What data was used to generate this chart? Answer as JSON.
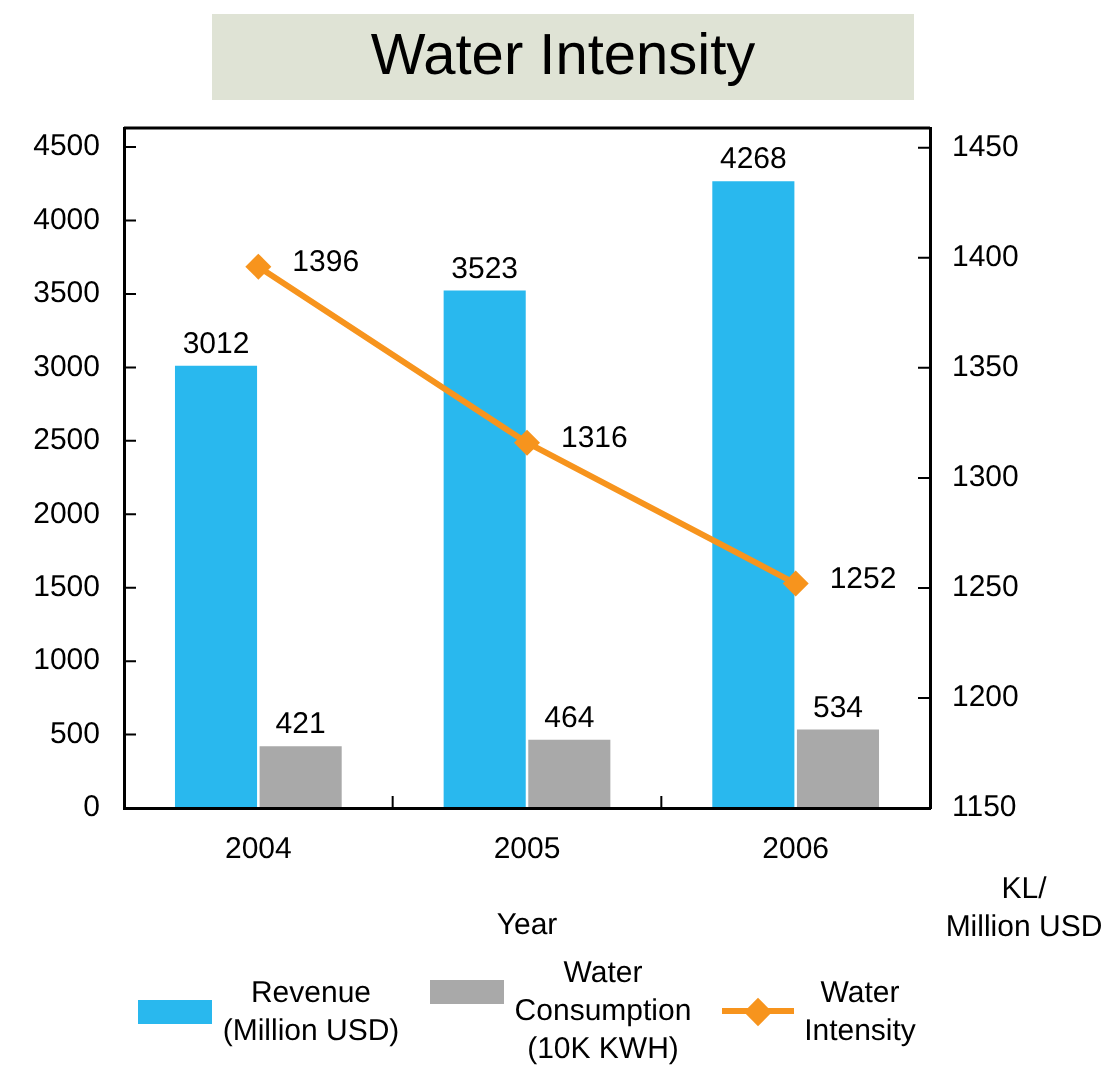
{
  "chart_data": {
    "type": "bar",
    "title": "Water Intensity",
    "categories": [
      "2004",
      "2005",
      "2006"
    ],
    "series": [
      {
        "name": "Revenue (Million USD)",
        "color": "#29b8ee",
        "values": [
          3012,
          3523,
          4268
        ]
      },
      {
        "name": "Water Consumption (10K KWH)",
        "color": "#a9a9a9",
        "values": [
          421,
          464,
          534
        ]
      },
      {
        "name": "Water Intensity",
        "type": "line",
        "axis": "y2",
        "color": "#f7941d",
        "values": [
          1396,
          1316,
          1252
        ]
      }
    ],
    "xlabel": "Year",
    "y2label": "KL/\nMillion USD",
    "ylim": [
      0,
      4630
    ],
    "yticks": [
      0,
      500,
      1000,
      1500,
      2000,
      2500,
      3000,
      3500,
      4000,
      4500
    ],
    "y2lim": [
      1150,
      1459
    ],
    "y2ticks": [
      1150,
      1200,
      1250,
      1300,
      1350,
      1400,
      1450
    ],
    "marker": "diamond",
    "data_labels": true,
    "legend": "bottom"
  }
}
